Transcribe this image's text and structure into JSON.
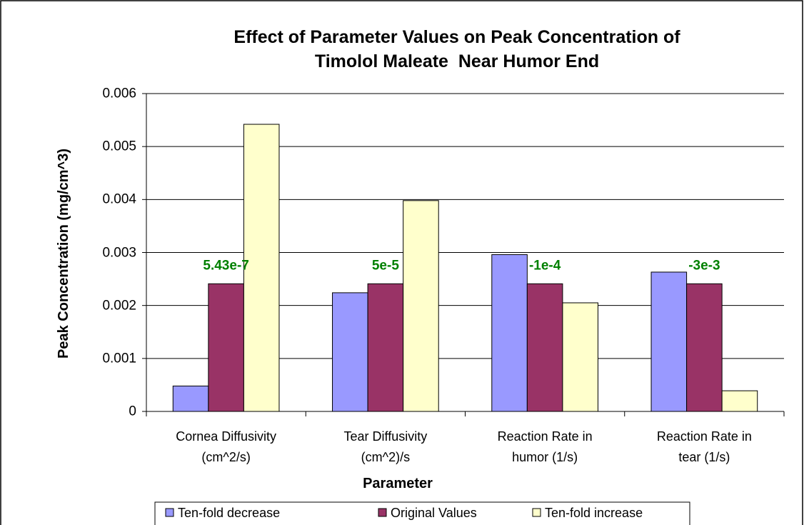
{
  "chart_data": {
    "type": "bar",
    "title": "Effect of Parameter Values on Peak Concentration of\nTimolol Maleate  Near Humor End",
    "x_label": "Parameter",
    "y_label": "Peak Concentration (mg/cm^3)",
    "categories": [
      "Cornea Diffusivity\n(cm^2/s)",
      "Tear Diffusivity\n(cm^2)/s",
      "Reaction Rate in\nhumor (1/s)",
      "Reaction Rate in\ntear (1/s)"
    ],
    "series": [
      {
        "name": "Ten-fold decrease",
        "color": "#9999ff",
        "values": [
          0.00048,
          0.00224,
          0.00296,
          0.00263
        ]
      },
      {
        "name": "Original Values",
        "color": "#993366",
        "values": [
          0.00241,
          0.00241,
          0.00241,
          0.00241
        ]
      },
      {
        "name": "Ten-fold increase",
        "color": "#ffffcc",
        "values": [
          0.00542,
          0.00398,
          0.00205,
          0.00039
        ]
      }
    ],
    "annotations": [
      "5.43e-7",
      "5e-5",
      "-1e-4",
      "-3e-3"
    ],
    "ylim": [
      0,
      0.006
    ],
    "yticks": [
      0,
      0.001,
      0.002,
      0.003,
      0.004,
      0.005,
      0.006
    ],
    "grid": true,
    "legend": "bottom"
  }
}
